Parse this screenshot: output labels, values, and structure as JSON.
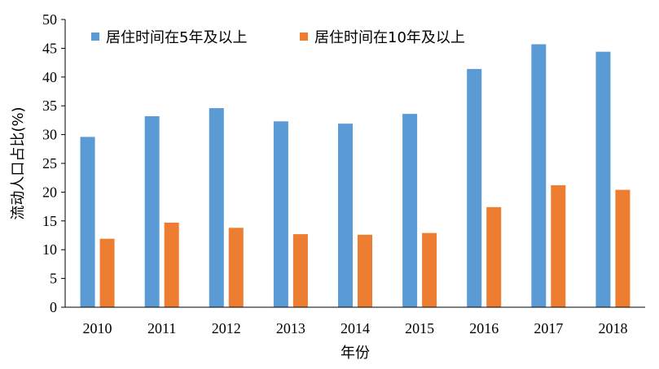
{
  "chart_data": {
    "type": "bar",
    "title": "",
    "xlabel": "年份",
    "ylabel": "流动人口占比(%)",
    "ylim": [
      0,
      50
    ],
    "yticks": [
      0,
      5,
      10,
      15,
      20,
      25,
      30,
      35,
      40,
      45,
      50
    ],
    "grid": false,
    "legend_position": "top-left",
    "categories": [
      "2010",
      "2011",
      "2012",
      "2013",
      "2014",
      "2015",
      "2016",
      "2017",
      "2018"
    ],
    "series": [
      {
        "name": "居住时间在5年及以上",
        "color": "#5B9BD5",
        "values": [
          29.6,
          33.2,
          34.6,
          32.3,
          31.9,
          33.6,
          41.4,
          45.7,
          44.4
        ]
      },
      {
        "name": "居住时间在10年及以上",
        "color": "#ED7D31",
        "values": [
          11.9,
          14.7,
          13.8,
          12.7,
          12.6,
          12.9,
          17.4,
          21.2,
          20.4
        ]
      }
    ]
  }
}
